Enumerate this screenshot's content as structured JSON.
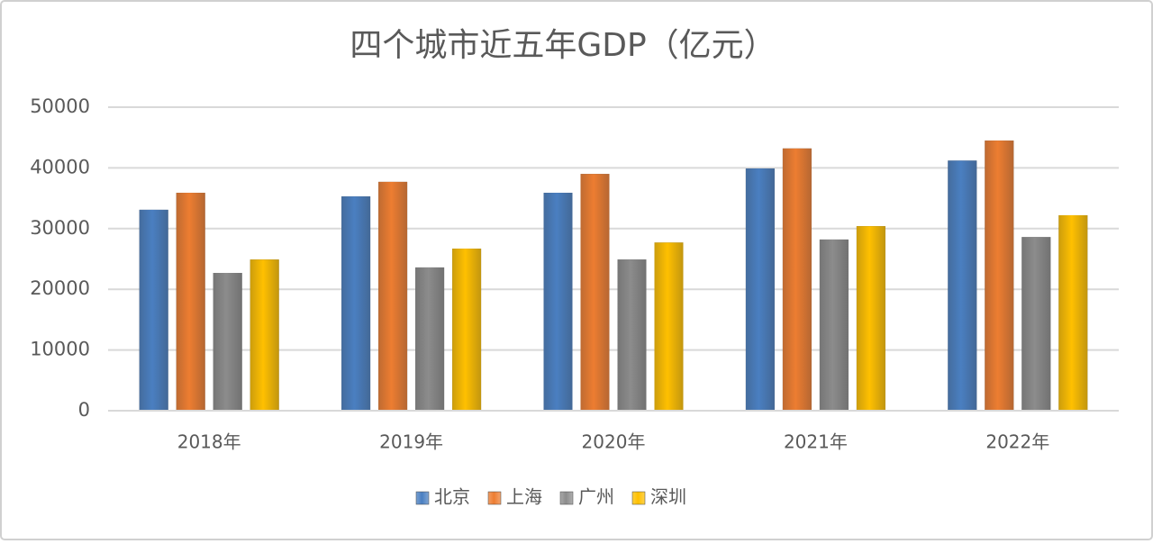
{
  "chart_data": {
    "type": "bar",
    "title": "四个城市近五年GDP（亿元）",
    "categories": [
      "2018年",
      "2019年",
      "2020年",
      "2021年",
      "2022年"
    ],
    "series": [
      {
        "name": "北京",
        "color": "#4a7fc1",
        "values": [
          33100,
          35300,
          35900,
          39900,
          41200
        ]
      },
      {
        "name": "上海",
        "color": "#ed7d31",
        "values": [
          35900,
          37700,
          39000,
          43200,
          44500
        ]
      },
      {
        "name": "广州",
        "color": "#8c8c8c",
        "values": [
          22700,
          23600,
          24900,
          28200,
          28600
        ]
      },
      {
        "name": "深圳",
        "color": "#ffc000",
        "values": [
          24900,
          26700,
          27700,
          30400,
          32200
        ]
      }
    ],
    "ylim": [
      0,
      50000
    ],
    "yticks": [
      0,
      10000,
      20000,
      30000,
      40000,
      50000
    ],
    "grid": true,
    "legend": "bottom"
  }
}
